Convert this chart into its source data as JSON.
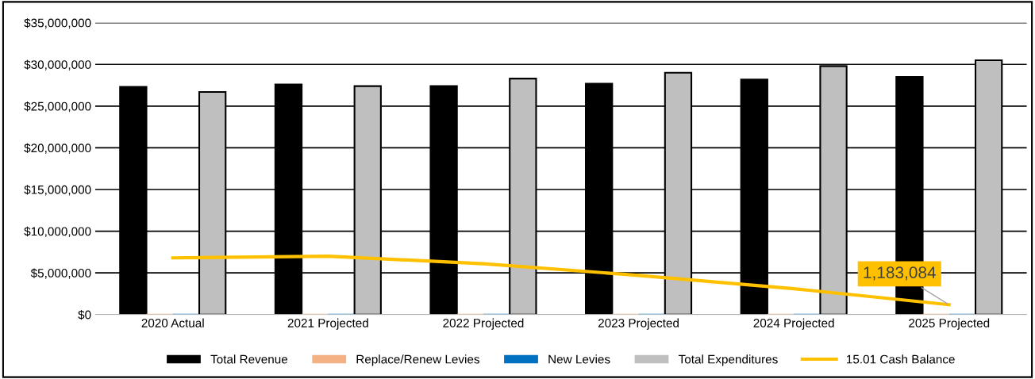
{
  "chart_data": {
    "type": "bar",
    "categories": [
      "2020 Actual",
      "2021 Projected",
      "2022 Projected",
      "2023 Projected",
      "2024 Projected",
      "2025 Projected"
    ],
    "series": [
      {
        "name": "Total Revenue",
        "color": "#000000",
        "values": [
          27300000,
          27600000,
          27400000,
          27700000,
          28200000,
          28500000
        ]
      },
      {
        "name": "Replace/Renew Levies",
        "color": "#f4b183",
        "values": [
          0,
          0,
          0,
          0,
          0,
          0
        ]
      },
      {
        "name": "New Levies",
        "color": "#0070c0",
        "values": [
          0,
          0,
          0,
          0,
          0,
          0
        ]
      },
      {
        "name": "Total Expenditures",
        "color": "#bfbfbf",
        "values": [
          26700000,
          27400000,
          28300000,
          29000000,
          29800000,
          30500000
        ]
      },
      {
        "name": "15.01 Cash Balance",
        "type": "line",
        "color": "#ffc000",
        "values": [
          6800000,
          7000000,
          6100000,
          4700000,
          3100000,
          1183084
        ],
        "value_labels": [
          null,
          null,
          null,
          null,
          null,
          "1,183,084"
        ]
      }
    ],
    "ylim": [
      0,
      35000000
    ],
    "yticks": [
      {
        "value": 0,
        "label": "$0"
      },
      {
        "value": 5000000,
        "label": "$5,000,000"
      },
      {
        "value": 10000000,
        "label": "$10,000,000"
      },
      {
        "value": 15000000,
        "label": "$15,000,000"
      },
      {
        "value": 20000000,
        "label": "$20,000,000"
      },
      {
        "value": 25000000,
        "label": "$25,000,000"
      },
      {
        "value": 30000000,
        "label": "$30,000,000"
      },
      {
        "value": 35000000,
        "label": "$35,000,000"
      }
    ],
    "grid": "y",
    "legend": "bottom",
    "marker": "none",
    "line_style": "solid"
  }
}
